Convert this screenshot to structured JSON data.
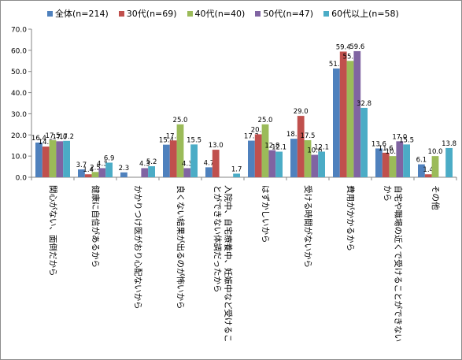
{
  "chart_data": {
    "type": "bar",
    "ylim": [
      0,
      70
    ],
    "yticks": [
      "0.0",
      "10.0",
      "20.0",
      "30.0",
      "40.0",
      "50.0",
      "60.0",
      "70.0"
    ],
    "legend_position": "top",
    "categories": [
      "関心がない、面倒だから",
      "健康に自信があるから",
      "かかりつけ医がおり心配ないから",
      "良くない結果が出るのが怖いから",
      "入院中、自宅療養中、妊娠中など受けることができない体調だったから",
      "はずかしいから",
      "受ける時間がないから",
      "費用がかかるから",
      "自宅や職場の近くで受けることができないから",
      "その他"
    ],
    "category_lines": [
      [
        "関心がない、面倒だから"
      ],
      [
        "健康に自信があるから"
      ],
      [
        "かかりつけ医がおり心配ないから"
      ],
      [
        "良くない結果が出るのが怖いから"
      ],
      [
        "入院中、自宅療養中、妊娠中など受けるこ",
        "とができない体調だったから"
      ],
      [
        "はずかしいから"
      ],
      [
        "受ける時間がないから"
      ],
      [
        "費用がかかるから"
      ],
      [
        "自宅や職場の近くで受けることができない",
        "から"
      ],
      [
        "その他"
      ]
    ],
    "series": [
      {
        "name": "全体(n=214)",
        "color": "#4f81bd",
        "values": [
          16.4,
          3.7,
          2.3,
          15.4,
          4.7,
          17.3,
          18.2,
          51.4,
          13.6,
          6.1
        ]
      },
      {
        "name": "30代(n=69)",
        "color": "#c0504d",
        "values": [
          14.5,
          1.4,
          0.0,
          17.4,
          13.0,
          20.3,
          29.0,
          59.4,
          11.6,
          1.4
        ]
      },
      {
        "name": "40代(n=40)",
        "color": "#9bbb59",
        "values": [
          17.5,
          2.5,
          0.0,
          25.0,
          0.0,
          25.0,
          17.5,
          55.0,
          10.0,
          10.0
        ]
      },
      {
        "name": "50代(n=47)",
        "color": "#8064a2",
        "values": [
          17.0,
          4.3,
          4.3,
          4.3,
          0.0,
          12.8,
          10.6,
          59.6,
          17.0,
          0.0
        ]
      },
      {
        "name": "60代以上(n=58)",
        "color": "#4bacc6",
        "values": [
          17.2,
          6.9,
          5.2,
          15.5,
          1.7,
          12.1,
          12.1,
          32.8,
          15.5,
          13.8
        ]
      }
    ]
  }
}
